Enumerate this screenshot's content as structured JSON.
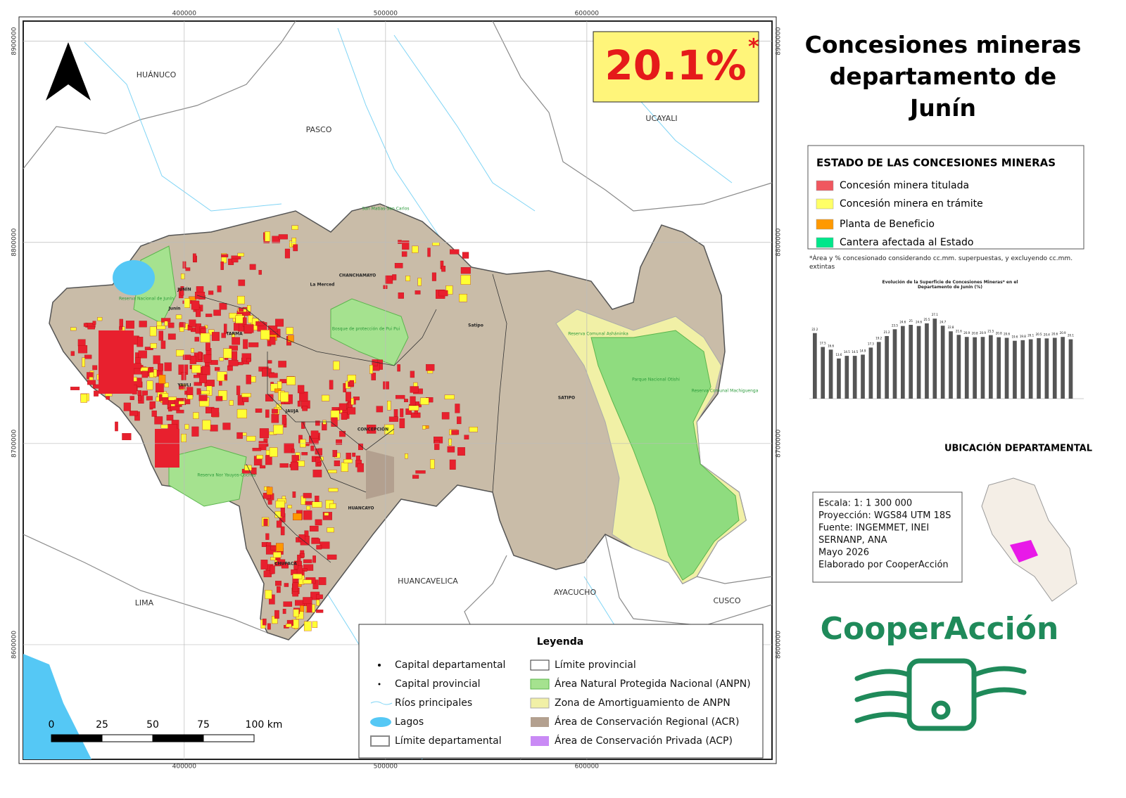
{
  "map": {
    "xlim": [
      320000,
      692000
    ],
    "ylim": [
      8543000,
      8910000
    ],
    "xticks": [
      400000,
      500000,
      600000
    ],
    "yticks": [
      8900000,
      8800000,
      8700000,
      8600000
    ],
    "regions": [
      "HUÁNUCO",
      "PASCO",
      "UCAYALI",
      "LIMA",
      "HUANCAVELICA",
      "AYACUCHO",
      "CUSCO"
    ],
    "places": [
      "JUNÍN",
      "TARMA",
      "YAULI",
      "JAUJA",
      "CONCEPCIÓN",
      "HUANCAYO",
      "CHUPACA",
      "CHANCHAMAYO",
      "SATIPO",
      "Junín",
      "La Merced",
      "Satipo"
    ],
    "protected_areas": [
      "Reserva Nacional de Junín",
      "Reserva Nor Yauyos-Cochas",
      "Bosque de protección de Pui Pui",
      "Reserva Comunal Asháninka",
      "Parque Nacional Otishi",
      "Reserva Comunal Machiguenga",
      "San Matías-San Carlos"
    ],
    "scale_bar": [
      0,
      25,
      50,
      75,
      {
        "value": 100,
        "label": "100 km"
      }
    ]
  },
  "headline": {
    "value": 20.1,
    "label": "20.1%",
    "mark": "*"
  },
  "title": "Concesiones mineras departamento de Junín",
  "status_legend": {
    "title": "ESTADO DE LAS CONCESIONES MINERAS",
    "items": [
      {
        "label": "Concesión minera titulada",
        "color": "#f0575f"
      },
      {
        "label": "Concesión minera en trámite",
        "color": "#ffff66"
      },
      {
        "label": "Planta de Beneficio",
        "color": "#ff9900"
      },
      {
        "label": "Cantera afectada al Estado",
        "color": "#00e68a"
      }
    ]
  },
  "note": "*Área y % concesionado considerando cc.mm. superpuestas, y excluyendo cc.mm. extintas",
  "trend_chart": {
    "title": "Evolución de la Superficie de Concesiones Mineras* en el Departamento de Junín (%)",
    "values": [
      22.2,
      17.5,
      16.6,
      13.6,
      14.5,
      14.5,
      14.9,
      17.3,
      19.2,
      21.2,
      23.5,
      24.6,
      25.0,
      24.6,
      25.5,
      27.1,
      24.7,
      22.8,
      21.6,
      20.9,
      20.8,
      20.9,
      21.5,
      20.8,
      20.6,
      19.6,
      19.8,
      20.1,
      20.5,
      20.4,
      20.6,
      20.9,
      20.1
    ]
  },
  "location": {
    "title": "UBICACIÓN DEPARTAMENTAL"
  },
  "info": [
    "Escala: 1: 1 300 000",
    "Proyección: WGS84 UTM 18S",
    "Fuente: INGEMMET, INEI",
    "SERNANP, ANA",
    "Mayo 2026",
    "Elaborado por CooperAcción"
  ],
  "legend": {
    "title": "Leyenda",
    "items": [
      "Capital departamental",
      "Capital provincial",
      "Ríos principales",
      "Lagos",
      "Límite departamental",
      "Límite provincial",
      "Área Natural Protegida Nacional (ANPN)",
      "Zona de Amortiguamiento de ANPN",
      "Área de Conservación Regional (ACR)",
      "Área de Conservación Privada (ACP)"
    ]
  },
  "logo": "CooperAcción"
}
